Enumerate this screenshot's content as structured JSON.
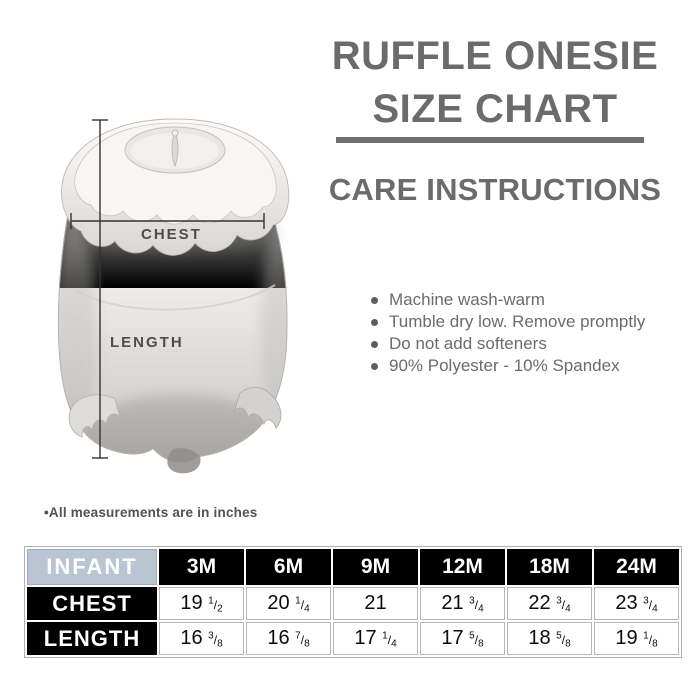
{
  "header": {
    "title_line1": "RUFFLE ONESIE",
    "title_line2": "SIZE CHART",
    "care_heading": "CARE INSTRUCTIONS",
    "text_color": "#6b6b6b"
  },
  "care_instructions": {
    "items": [
      "Machine wash-warm",
      "Tumble dry low. Remove promptly",
      "Do not add softeners",
      "90% Polyester - 10% Spandex"
    ]
  },
  "diagram": {
    "chest_label": "CHEST",
    "length_label": "LENGTH",
    "note": "•All measurements are in inches"
  },
  "size_table": {
    "corner_label": "INFANT",
    "corner_bg": "#b9c5d3",
    "header_bg": "#000000",
    "columns": [
      "3M",
      "6M",
      "9M",
      "12M",
      "18M",
      "24M"
    ],
    "rows": [
      {
        "label": "CHEST",
        "values": [
          "19 1/2",
          "20 1/4",
          "21",
          "21 3/4",
          "22 3/4",
          "23 3/4"
        ]
      },
      {
        "label": "LENGTH",
        "values": [
          "16 3/8",
          "16 7/8",
          "17 1/4",
          "17 5/8",
          "18 5/8",
          "19 1/8"
        ]
      }
    ],
    "units": "inches"
  }
}
